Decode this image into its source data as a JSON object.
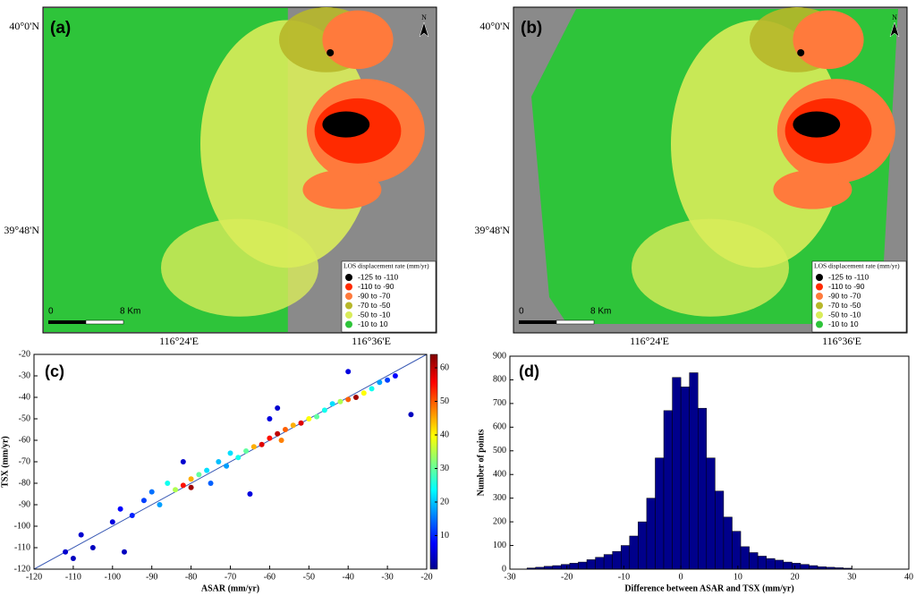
{
  "chart_data": [
    {
      "type": "map",
      "panel_label": "(a)",
      "lat_labels": [
        "40°0'N",
        "39°48'N"
      ],
      "lon_labels": [
        "116°24'E",
        "116°36'E"
      ],
      "north": "N",
      "scale_labels": [
        "0",
        "8 Km"
      ],
      "legend_title": "LOS displacement rate (mm/yr)",
      "legend": [
        {
          "label": "-125  to  -110",
          "color": "#000000"
        },
        {
          "label": "-110  to  -90",
          "color": "#ff2a00"
        },
        {
          "label": "-90  to  -70",
          "color": "#ff7a3c"
        },
        {
          "label": "-70  to  -50",
          "color": "#b7b72a"
        },
        {
          "label": "-50  to  -10",
          "color": "#d9ec5a"
        },
        {
          "label": "-10  to  10",
          "color": "#2ec43a"
        }
      ]
    },
    {
      "type": "map",
      "panel_label": "(b)",
      "lat_labels": [
        "40°0'N",
        "39°48'N"
      ],
      "lon_labels": [
        "116°24'E",
        "116°36'E"
      ],
      "north": "N",
      "scale_labels": [
        "0",
        "8 Km"
      ],
      "legend_title": "LOS displacement rate (mm/yr)",
      "legend": [
        {
          "label": "-125  to  -110",
          "color": "#000000"
        },
        {
          "label": "-110  to  -90",
          "color": "#ff2a00"
        },
        {
          "label": "-90  to  -70",
          "color": "#ff7a3c"
        },
        {
          "label": "-70  to  -50",
          "color": "#b7b72a"
        },
        {
          "label": "-50  to  -10",
          "color": "#d9ec5a"
        },
        {
          "label": "-10  to  10",
          "color": "#2ec43a"
        }
      ]
    },
    {
      "type": "scatter",
      "panel_label": "(c)",
      "x_label": "ASAR (mm/yr)",
      "y_label": "TSX (mm/yr)",
      "xlim": [
        -120,
        -20
      ],
      "ylim": [
        -120,
        -20
      ],
      "xticks": [
        -120,
        -110,
        -100,
        -90,
        -80,
        -70,
        -60,
        -50,
        -40,
        -30,
        -20
      ],
      "yticks": [
        -120,
        -110,
        -100,
        -90,
        -80,
        -70,
        -60,
        -50,
        -40,
        -30,
        -20
      ],
      "colorbar_lim": [
        0,
        64
      ],
      "colorbar_ticks": [
        10,
        20,
        30,
        40,
        50,
        60
      ],
      "line_color": "#3b5bb5",
      "x": [
        -112,
        -108,
        -105,
        -100,
        -98,
        -95,
        -92,
        -90,
        -88,
        -86,
        -84,
        -82,
        -80,
        -80,
        -78,
        -76,
        -75,
        -73,
        -71,
        -70,
        -68,
        -66,
        -64,
        -62,
        -60,
        -58,
        -57,
        -56,
        -54,
        -52,
        -50,
        -48,
        -46,
        -44,
        -42,
        -40,
        -38,
        -36,
        -34,
        -32,
        -30,
        -28,
        -60,
        -58,
        -65,
        -82,
        -24,
        -97,
        -40,
        -110
      ],
      "y": [
        -112,
        -104,
        -110,
        -98,
        -92,
        -95,
        -88,
        -84,
        -90,
        -80,
        -83,
        -81,
        -82,
        -78,
        -76,
        -74,
        -80,
        -70,
        -72,
        -66,
        -68,
        -65,
        -63,
        -62,
        -59,
        -57,
        -60,
        -55,
        -53,
        -52,
        -50,
        -49,
        -46,
        -43,
        -42,
        -41,
        -40,
        -38,
        -36,
        -33,
        -32,
        -30,
        -50,
        -45,
        -85,
        -70,
        -48,
        -112,
        -28,
        -115
      ],
      "density": [
        5,
        5,
        4,
        6,
        8,
        10,
        12,
        15,
        18,
        25,
        35,
        55,
        62,
        45,
        30,
        22,
        14,
        20,
        18,
        22,
        25,
        30,
        45,
        58,
        55,
        60,
        48,
        50,
        45,
        58,
        40,
        30,
        25,
        22,
        35,
        50,
        62,
        40,
        25,
        18,
        12,
        8,
        6,
        5,
        6,
        5,
        4,
        4,
        6,
        4
      ]
    },
    {
      "type": "histogram",
      "panel_label": "(d)",
      "x_label": "Difference between ASAR and TSX (mm/yr)",
      "y_label": "Number of points",
      "color": "#00008b",
      "xlim": [
        -30,
        40
      ],
      "ylim": [
        0,
        900
      ],
      "xticks": [
        -30,
        -20,
        -10,
        0,
        10,
        20,
        30,
        40
      ],
      "yticks": [
        0,
        100,
        200,
        300,
        400,
        500,
        600,
        700,
        800,
        900
      ],
      "bins": [
        -27,
        -25.5,
        -24,
        -22.5,
        -21,
        -19.5,
        -18,
        -16.5,
        -15,
        -13.5,
        -12,
        -10.5,
        -9,
        -7.5,
        -6,
        -4.5,
        -3,
        -1.5,
        0,
        1.5,
        3,
        4.5,
        6,
        7.5,
        9,
        10.5,
        12,
        13.5,
        15,
        16.5,
        18,
        19.5,
        21,
        22.5,
        24,
        25.5,
        27,
        28.5,
        30
      ],
      "counts": [
        5,
        8,
        12,
        15,
        20,
        25,
        30,
        40,
        50,
        62,
        75,
        100,
        140,
        200,
        300,
        470,
        670,
        810,
        770,
        830,
        680,
        470,
        330,
        220,
        160,
        95,
        70,
        55,
        45,
        38,
        30,
        25,
        20,
        15,
        10,
        8,
        6,
        4
      ]
    }
  ]
}
